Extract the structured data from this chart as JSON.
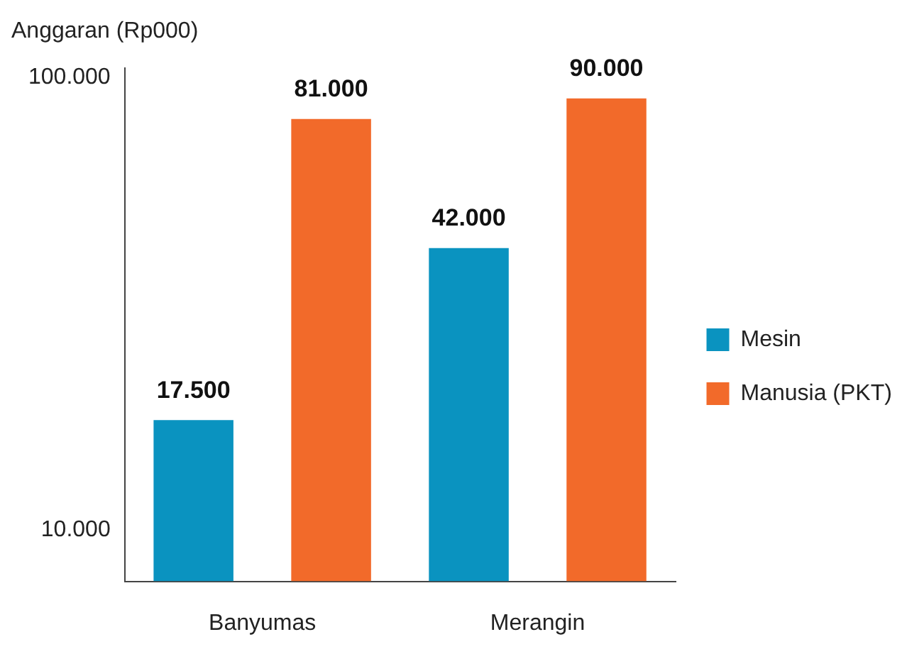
{
  "chart_data": {
    "type": "bar",
    "ylabel": "Anggaran (Rp000)",
    "categories": [
      "Banyumas",
      "Merangin"
    ],
    "series": [
      {
        "name": "Mesin",
        "color": "#0a93c0",
        "values": [
          17500,
          42000
        ]
      },
      {
        "name": "Manusia (PKT)",
        "color": "#f26a2a",
        "values": [
          81000,
          90000
        ]
      }
    ],
    "log": true,
    "ylim": [
      7700,
      105000
    ],
    "yticks": [
      {
        "value": 10000,
        "label": "10.000"
      },
      {
        "value": 100000,
        "label": "100.000"
      }
    ],
    "value_labels": [
      [
        "17.500",
        "42.000"
      ],
      [
        "81.000",
        "90.000"
      ]
    ],
    "grid": false,
    "legend": "right"
  }
}
